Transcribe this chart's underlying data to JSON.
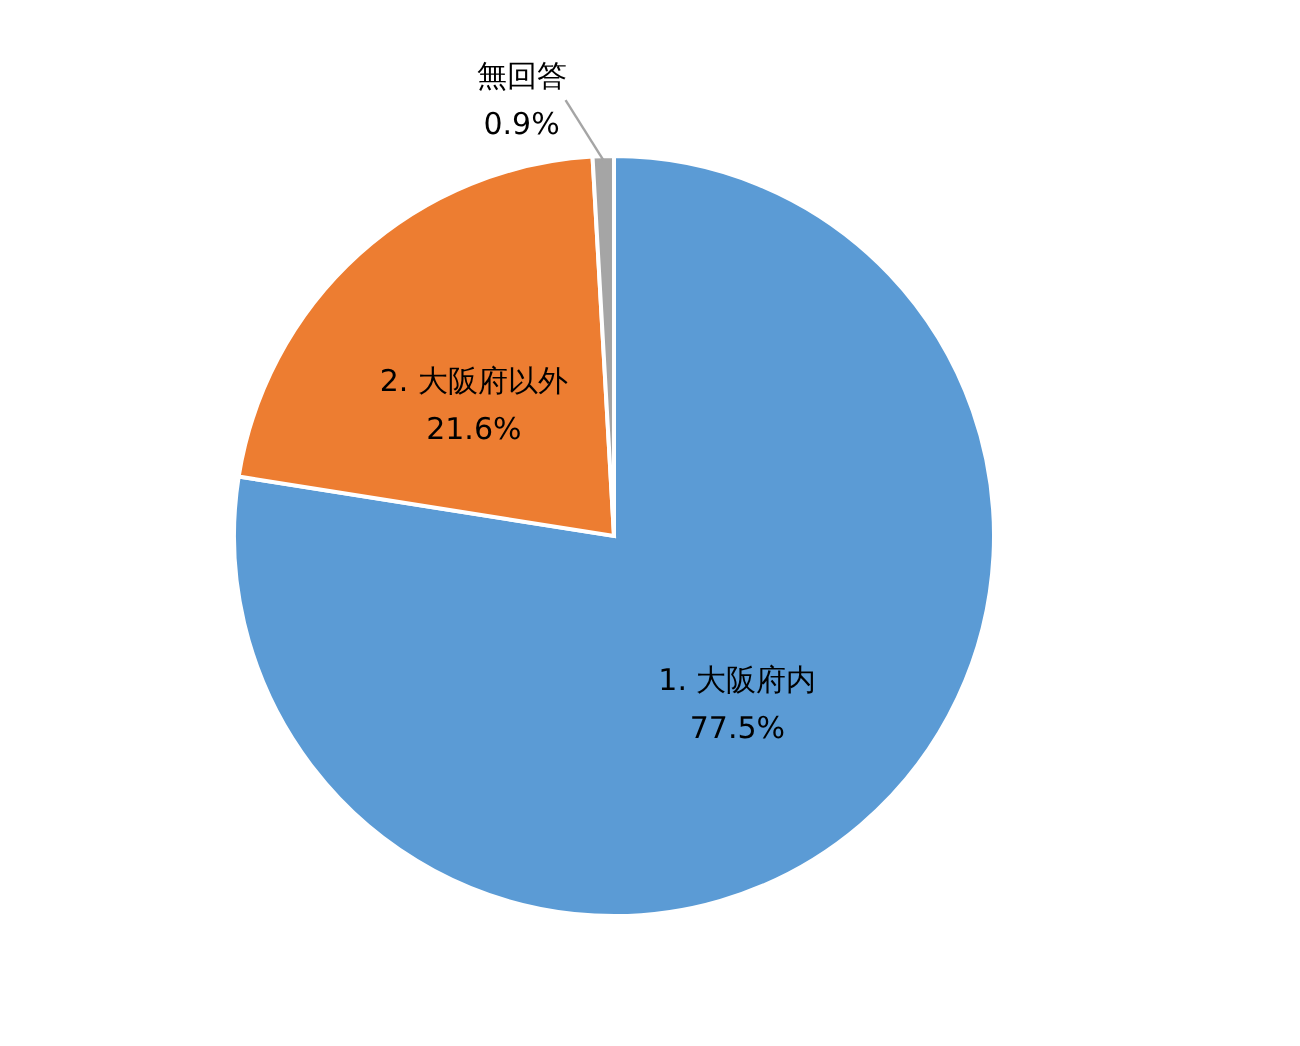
{
  "chart_data": {
    "type": "pie",
    "categories": [
      "1. 大阪府内",
      "2. 大阪府以外",
      "無回答"
    ],
    "values": [
      77.5,
      21.6,
      0.9
    ],
    "colors": [
      "#5b9bd5",
      "#ed7d31",
      "#a5a5a5"
    ],
    "value_labels": [
      "77.5%",
      "21.6%",
      "0.9%"
    ]
  }
}
